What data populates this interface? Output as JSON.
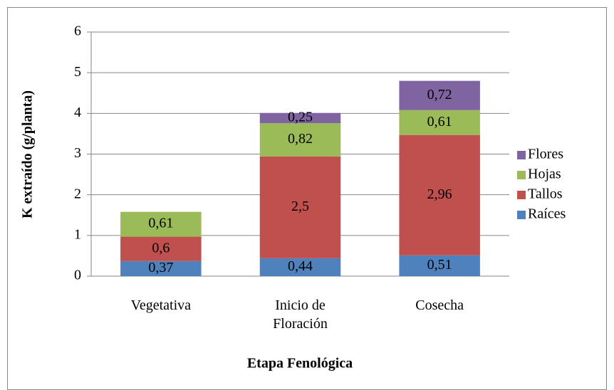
{
  "chart_data": {
    "type": "stacked_bar",
    "x_label": "Etapa Fenológica",
    "y_label": "K extraído (g/planta)",
    "categories": [
      "Vegetativa",
      "Inicio de Floración",
      "Cosecha"
    ],
    "series": [
      {
        "name": "Raíces",
        "color": "#4f81bd",
        "values": [
          0.37,
          0.44,
          0.51
        ],
        "value_labels": [
          "0,37",
          "0,44",
          "0,51"
        ]
      },
      {
        "name": "Tallos",
        "color": "#c0504d",
        "values": [
          0.6,
          2.5,
          2.96
        ],
        "value_labels": [
          "0,6",
          "2,5",
          "2,96"
        ]
      },
      {
        "name": "Hojas",
        "color": "#9bbb59",
        "values": [
          0.61,
          0.82,
          0.61
        ],
        "value_labels": [
          "0,61",
          "0,82",
          "0,61"
        ]
      },
      {
        "name": "Flores",
        "color": "#8064a2",
        "values": [
          null,
          0.25,
          0.72
        ],
        "value_labels": [
          null,
          "0,25",
          "0,72"
        ]
      }
    ],
    "ylim": [
      0,
      6
    ],
    "yticks": [
      0,
      1,
      2,
      3,
      4,
      5,
      6
    ],
    "grid": true,
    "legend": "right"
  }
}
